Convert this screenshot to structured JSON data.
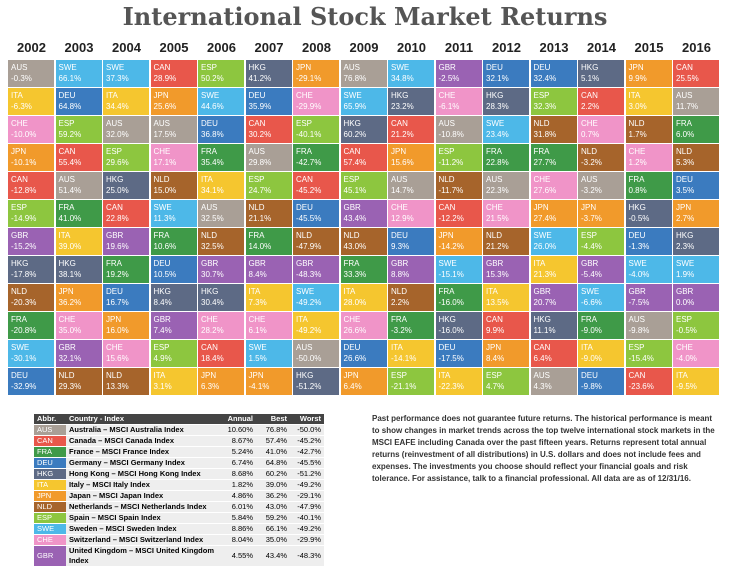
{
  "title": "International Stock Market Returns",
  "colors": {
    "AUS": "#a99f96",
    "CAN": "#e8574b",
    "FRA": "#3f9a48",
    "DEU": "#3b7bbf",
    "HKG": "#5d6a85",
    "ITA": "#f5c62f",
    "JPN": "#f19a2b",
    "NLD": "#a6642b",
    "ESP": "#8dc63f",
    "SWE": "#4db8e8",
    "CHE": "#f094c8",
    "GBR": "#9a62b3"
  },
  "grid": {
    "years": [
      "2002",
      "2003",
      "2004",
      "2005",
      "2006",
      "2007",
      "2008",
      "2009",
      "2010",
      "2011",
      "2012",
      "2013",
      "2014",
      "2015",
      "2016"
    ],
    "columns": [
      [
        [
          "AUS",
          "-0.3%"
        ],
        [
          "ITA",
          "-6.3%"
        ],
        [
          "CHE",
          "-10.0%"
        ],
        [
          "JPN",
          "-10.1%"
        ],
        [
          "CAN",
          "-12.8%"
        ],
        [
          "ESP",
          "-14.9%"
        ],
        [
          "GBR",
          "-15.2%"
        ],
        [
          "HKG",
          "-17.8%"
        ],
        [
          "NLD",
          "-20.3%"
        ],
        [
          "FRA",
          "-20.8%"
        ],
        [
          "SWE",
          "-30.1%"
        ],
        [
          "DEU",
          "-32.9%"
        ]
      ],
      [
        [
          "SWE",
          "66.1%"
        ],
        [
          "DEU",
          "64.8%"
        ],
        [
          "ESP",
          "59.2%"
        ],
        [
          "CAN",
          "55.4%"
        ],
        [
          "AUS",
          "51.4%"
        ],
        [
          "FRA",
          "41.0%"
        ],
        [
          "ITA",
          "39.0%"
        ],
        [
          "HKG",
          "38.1%"
        ],
        [
          "JPN",
          "36.2%"
        ],
        [
          "CHE",
          "35.0%"
        ],
        [
          "GBR",
          "32.1%"
        ],
        [
          "NLD",
          "29.3%"
        ]
      ],
      [
        [
          "SWE",
          "37.3%"
        ],
        [
          "ITA",
          "34.4%"
        ],
        [
          "AUS",
          "32.0%"
        ],
        [
          "ESP",
          "29.6%"
        ],
        [
          "HKG",
          "25.0%"
        ],
        [
          "CAN",
          "22.8%"
        ],
        [
          "GBR",
          "19.6%"
        ],
        [
          "FRA",
          "19.2%"
        ],
        [
          "DEU",
          "16.7%"
        ],
        [
          "JPN",
          "16.0%"
        ],
        [
          "CHE",
          "15.6%"
        ],
        [
          "NLD",
          "13.3%"
        ]
      ],
      [
        [
          "CAN",
          "28.9%"
        ],
        [
          "JPN",
          "25.6%"
        ],
        [
          "AUS",
          "17.5%"
        ],
        [
          "CHE",
          "17.1%"
        ],
        [
          "NLD",
          "15.0%"
        ],
        [
          "SWE",
          "11.3%"
        ],
        [
          "FRA",
          "10.6%"
        ],
        [
          "DEU",
          "10.5%"
        ],
        [
          "HKG",
          "8.4%"
        ],
        [
          "GBR",
          "7.4%"
        ],
        [
          "ESP",
          "4.9%"
        ],
        [
          "ITA",
          "3.1%"
        ]
      ],
      [
        [
          "ESP",
          "50.2%"
        ],
        [
          "SWE",
          "44.6%"
        ],
        [
          "DEU",
          "36.8%"
        ],
        [
          "FRA",
          "35.4%"
        ],
        [
          "ITA",
          "34.1%"
        ],
        [
          "AUS",
          "32.5%"
        ],
        [
          "NLD",
          "32.5%"
        ],
        [
          "GBR",
          "30.7%"
        ],
        [
          "HKG",
          "30.4%"
        ],
        [
          "CHE",
          "28.2%"
        ],
        [
          "CAN",
          "18.4%"
        ],
        [
          "JPN",
          "6.3%"
        ]
      ],
      [
        [
          "HKG",
          "41.2%"
        ],
        [
          "DEU",
          "35.9%"
        ],
        [
          "CAN",
          "30.2%"
        ],
        [
          "AUS",
          "29.8%"
        ],
        [
          "ESP",
          "24.7%"
        ],
        [
          "NLD",
          "21.1%"
        ],
        [
          "FRA",
          "14.0%"
        ],
        [
          "GBR",
          "8.4%"
        ],
        [
          "ITA",
          "7.3%"
        ],
        [
          "CHE",
          "6.1%"
        ],
        [
          "SWE",
          "1.5%"
        ],
        [
          "JPN",
          "-4.1%"
        ]
      ],
      [
        [
          "JPN",
          "-29.1%"
        ],
        [
          "CHE",
          "-29.9%"
        ],
        [
          "ESP",
          "-40.1%"
        ],
        [
          "FRA",
          "-42.7%"
        ],
        [
          "CAN",
          "-45.2%"
        ],
        [
          "DEU",
          "-45.5%"
        ],
        [
          "NLD",
          "-47.9%"
        ],
        [
          "GBR",
          "-48.3%"
        ],
        [
          "SWE",
          "-49.2%"
        ],
        [
          "ITA",
          "-49.2%"
        ],
        [
          "AUS",
          "-50.0%"
        ],
        [
          "HKG",
          "-51.2%"
        ]
      ],
      [
        [
          "AUS",
          "76.8%"
        ],
        [
          "SWE",
          "65.9%"
        ],
        [
          "HKG",
          "60.2%"
        ],
        [
          "CAN",
          "57.4%"
        ],
        [
          "ESP",
          "45.1%"
        ],
        [
          "GBR",
          "43.4%"
        ],
        [
          "NLD",
          "43.0%"
        ],
        [
          "FRA",
          "33.3%"
        ],
        [
          "ITA",
          "28.0%"
        ],
        [
          "CHE",
          "26.6%"
        ],
        [
          "DEU",
          "26.6%"
        ],
        [
          "JPN",
          "6.4%"
        ]
      ],
      [
        [
          "SWE",
          "34.8%"
        ],
        [
          "HKG",
          "23.2%"
        ],
        [
          "CAN",
          "21.2%"
        ],
        [
          "JPN",
          "15.6%"
        ],
        [
          "AUS",
          "14.7%"
        ],
        [
          "CHE",
          "12.9%"
        ],
        [
          "DEU",
          "9.3%"
        ],
        [
          "GBR",
          "8.8%"
        ],
        [
          "NLD",
          "2.2%"
        ],
        [
          "FRA",
          "-3.2%"
        ],
        [
          "ITA",
          "-14.1%"
        ],
        [
          "ESP",
          "-21.1%"
        ]
      ],
      [
        [
          "GBR",
          "-2.5%"
        ],
        [
          "CHE",
          "-6.1%"
        ],
        [
          "AUS",
          "-10.8%"
        ],
        [
          "ESP",
          "-11.2%"
        ],
        [
          "NLD",
          "-11.7%"
        ],
        [
          "CAN",
          "-12.2%"
        ],
        [
          "JPN",
          "-14.2%"
        ],
        [
          "SWE",
          "-15.1%"
        ],
        [
          "FRA",
          "-16.0%"
        ],
        [
          "HKG",
          "-16.0%"
        ],
        [
          "DEU",
          "-17.5%"
        ],
        [
          "ITA",
          "-22.3%"
        ]
      ],
      [
        [
          "DEU",
          "32.1%"
        ],
        [
          "HKG",
          "28.3%"
        ],
        [
          "SWE",
          "23.4%"
        ],
        [
          "FRA",
          "22.8%"
        ],
        [
          "AUS",
          "22.3%"
        ],
        [
          "CHE",
          "21.5%"
        ],
        [
          "NLD",
          "21.2%"
        ],
        [
          "GBR",
          "15.3%"
        ],
        [
          "ITA",
          "13.5%"
        ],
        [
          "CAN",
          "9.9%"
        ],
        [
          "JPN",
          "8.4%"
        ],
        [
          "ESP",
          "4.7%"
        ]
      ],
      [
        [
          "DEU",
          "32.4%"
        ],
        [
          "ESP",
          "32.3%"
        ],
        [
          "NLD",
          "31.8%"
        ],
        [
          "FRA",
          "27.7%"
        ],
        [
          "CHE",
          "27.6%"
        ],
        [
          "JPN",
          "27.4%"
        ],
        [
          "SWE",
          "26.0%"
        ],
        [
          "ITA",
          "21.3%"
        ],
        [
          "GBR",
          "20.7%"
        ],
        [
          "HKG",
          "11.1%"
        ],
        [
          "CAN",
          "6.4%"
        ],
        [
          "AUS",
          "4.3%"
        ]
      ],
      [
        [
          "HKG",
          "5.1%"
        ],
        [
          "CAN",
          "2.2%"
        ],
        [
          "CHE",
          "0.7%"
        ],
        [
          "NLD",
          "-3.2%"
        ],
        [
          "AUS",
          "-3.2%"
        ],
        [
          "JPN",
          "-3.7%"
        ],
        [
          "ESP",
          "-4.4%"
        ],
        [
          "GBR",
          "-5.4%"
        ],
        [
          "SWE",
          "-6.6%"
        ],
        [
          "FRA",
          "-9.0%"
        ],
        [
          "ITA",
          "-9.0%"
        ],
        [
          "DEU",
          "-9.8%"
        ]
      ],
      [
        [
          "JPN",
          "9.9%"
        ],
        [
          "ITA",
          "3.0%"
        ],
        [
          "NLD",
          "1.7%"
        ],
        [
          "CHE",
          "1.2%"
        ],
        [
          "FRA",
          "0.8%"
        ],
        [
          "HKG",
          "-0.5%"
        ],
        [
          "DEU",
          "-1.3%"
        ],
        [
          "SWE",
          "-4.0%"
        ],
        [
          "GBR",
          "-7.5%"
        ],
        [
          "AUS",
          "-9.8%"
        ],
        [
          "ESP",
          "-15.4%"
        ],
        [
          "CAN",
          "-23.6%"
        ]
      ],
      [
        [
          "CAN",
          "25.5%"
        ],
        [
          "AUS",
          "11.7%"
        ],
        [
          "FRA",
          "6.0%"
        ],
        [
          "NLD",
          "5.3%"
        ],
        [
          "DEU",
          "3.5%"
        ],
        [
          "JPN",
          "2.7%"
        ],
        [
          "HKG",
          "2.3%"
        ],
        [
          "SWE",
          "1.9%"
        ],
        [
          "GBR",
          "0.0%"
        ],
        [
          "ESP",
          "-0.5%"
        ],
        [
          "CHE",
          "-4.0%"
        ],
        [
          "ITA",
          "-9.5%"
        ]
      ]
    ]
  },
  "legend": {
    "header": [
      "Abbr.",
      "Country - Index",
      "Annual",
      "Best",
      "Worst"
    ],
    "rows": [
      [
        "AUS",
        "Australia – MSCI Australia Index",
        "10.60%",
        "76.8%",
        "-50.0%"
      ],
      [
        "CAN",
        "Canada – MSCI Canada Index",
        "8.67%",
        "57.4%",
        "-45.2%"
      ],
      [
        "FRA",
        "France – MSCI France Index",
        "5.24%",
        "41.0%",
        "-42.7%"
      ],
      [
        "DEU",
        "Germany – MSCI Germany Index",
        "6.74%",
        "64.8%",
        "-45.5%"
      ],
      [
        "HKG",
        "Hong Kong – MSCI Hong Kong Index",
        "8.68%",
        "60.2%",
        "-51.2%"
      ],
      [
        "ITA",
        "Italy – MSCI Italy Index",
        "1.82%",
        "39.0%",
        "-49.2%"
      ],
      [
        "JPN",
        "Japan – MSCI Japan Index",
        "4.86%",
        "36.2%",
        "-29.1%"
      ],
      [
        "NLD",
        "Netherlands – MSCI Netherlands Index",
        "6.01%",
        "43.0%",
        "-47.9%"
      ],
      [
        "ESP",
        "Spain – MSCI Spain Index",
        "5.84%",
        "59.2%",
        "-40.1%"
      ],
      [
        "SWE",
        "Sweden – MSCI Sweden Index",
        "8.86%",
        "66.1%",
        "-49.2%"
      ],
      [
        "CHE",
        "Switzerland – MSCI Switzerland Index",
        "8.04%",
        "35.0%",
        "-29.9%"
      ],
      [
        "GBR",
        "United Kingdom – MSCI United Kingdom Index",
        "4.55%",
        "43.4%",
        "-48.3%"
      ]
    ]
  },
  "disclaimer": "Past performance does not guarantee future returns. The historical performance is meant to show changes in market trends across the top twelve international stock markets in the MSCI EAFE including Canada over the past fifteen years. Returns represent total annual returns (reinvestment of all distributions) in U.S. dollars and does not include fees and expenses. The investments you choose should reflect your financial goals and risk tolerance. For assistance, talk to a financial professional. All data are as of 12/31/16."
}
